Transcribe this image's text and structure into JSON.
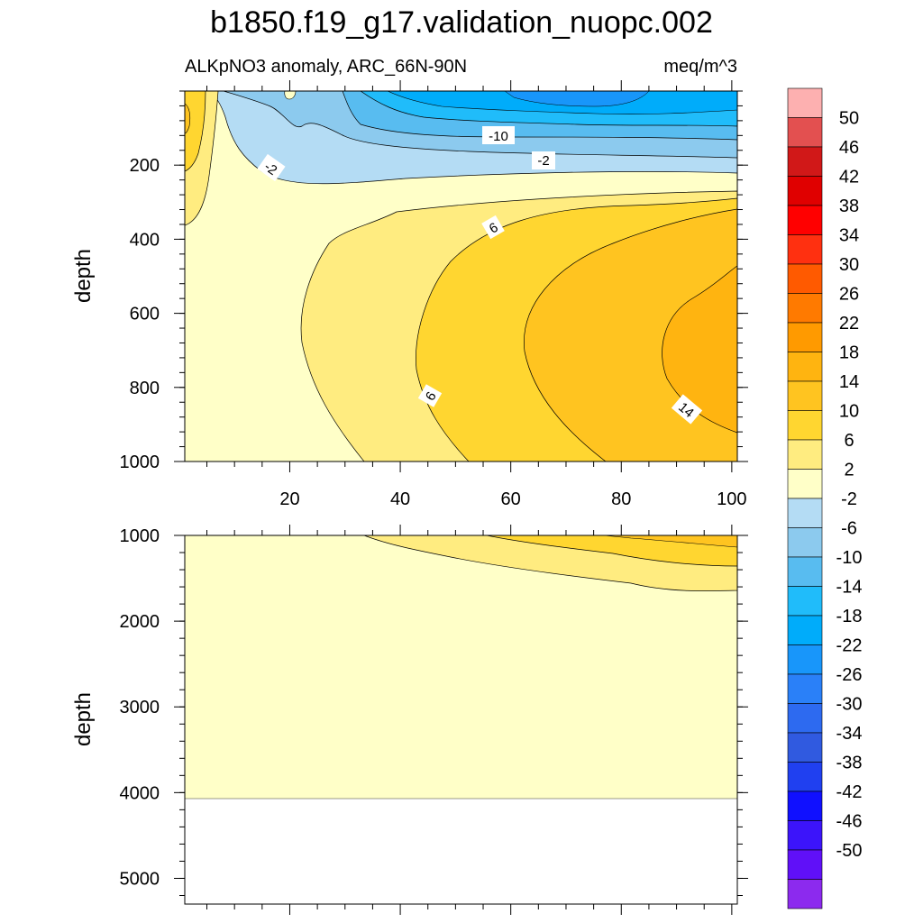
{
  "title": "b1850.f19_g17.validation_nuopc.002",
  "chart_data": [
    {
      "type": "contour",
      "panel": "upper",
      "left_label": "ALKpNO3 anomaly, ARC_66N-90N",
      "right_label": "meq/m^3",
      "ylabel": "depth",
      "xlim": [
        1,
        101
      ],
      "ylim": [
        1000,
        0
      ],
      "x_ticks": [
        20,
        40,
        60,
        80,
        100
      ],
      "y_ticks": [
        200,
        400,
        600,
        800,
        1000
      ],
      "contour_labels": [
        {
          "text": "-10",
          "x": 56,
          "y": 90
        },
        {
          "text": "-2",
          "x": 65,
          "y": 185
        },
        {
          "text": "-2",
          "x": 18,
          "y": 215
        },
        {
          "text": "6",
          "x": 56,
          "y": 305
        },
        {
          "text": "6",
          "x": 45,
          "y": 820
        },
        {
          "text": "14",
          "x": 92,
          "y": 880
        }
      ]
    },
    {
      "type": "contour",
      "panel": "lower",
      "ylabel": "depth",
      "xlim": [
        1,
        101
      ],
      "ylim": [
        5300,
        1000
      ],
      "y_ticks": [
        1000,
        2000,
        3000,
        4000,
        5000
      ],
      "data_bottom_depth": 4120
    }
  ],
  "colorbar": {
    "labels": [
      "50",
      "46",
      "42",
      "38",
      "34",
      "30",
      "26",
      "22",
      "18",
      "14",
      "10",
      "6",
      "2",
      "-2",
      "-6",
      "-10",
      "-14",
      "-18",
      "-22",
      "-26",
      "-30",
      "-34",
      "-38",
      "-42",
      "-46",
      "-50"
    ],
    "colors": [
      "#fdb0b0",
      "#e35050",
      "#d11818",
      "#e00000",
      "#ff0000",
      "#ff3010",
      "#ff5a00",
      "#ff7a00",
      "#ff9a00",
      "#ffb410",
      "#ffc420",
      "#ffd630",
      "#ffec80",
      "#ffffc8",
      "#b4dcf4",
      "#8ccaee",
      "#58bcf0",
      "#20bcfa",
      "#00acfa",
      "#1896fa",
      "#2a80f8",
      "#2d6af0",
      "#305ae0",
      "#2040f0",
      "#1010ff",
      "#3c14fa",
      "#6010f8",
      "#8c2aee"
    ]
  }
}
